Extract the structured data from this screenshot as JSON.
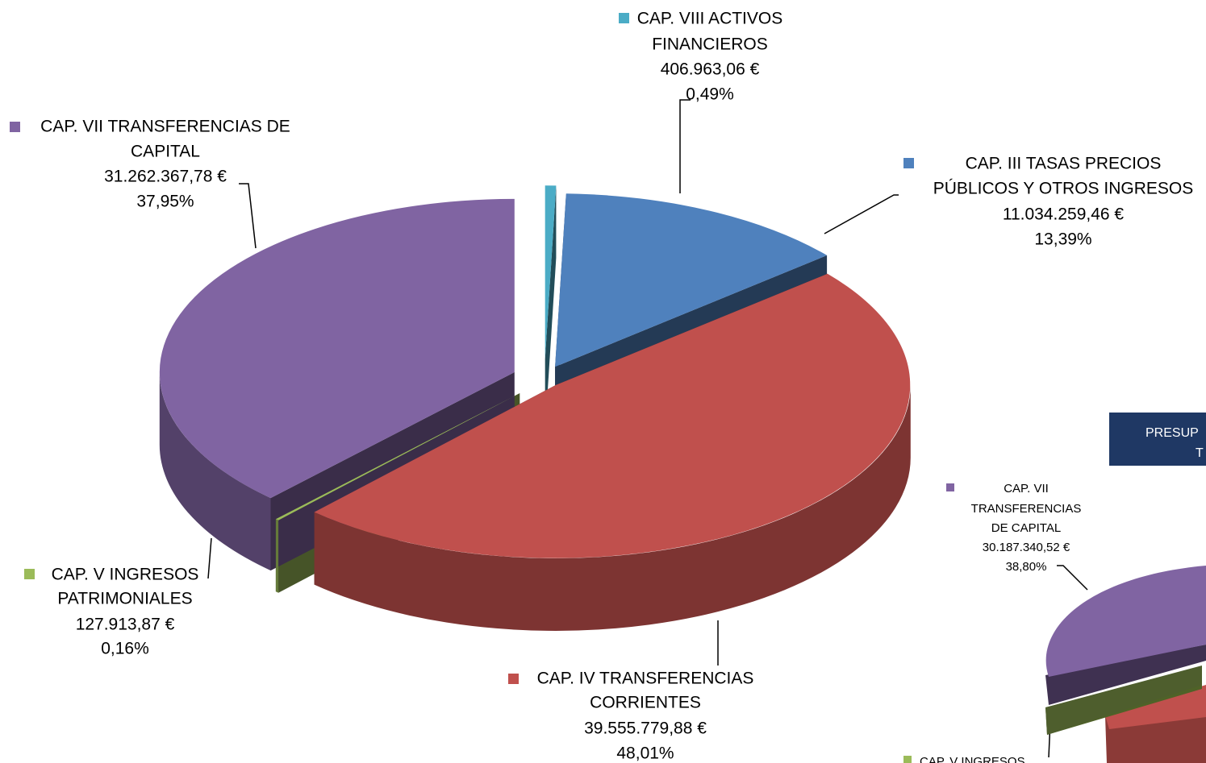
{
  "chart_data": [
    {
      "type": "pie",
      "categories": [
        [
          "CAP. VIII ACTIVOS",
          "FINANCIEROS"
        ],
        [
          "CAP. III TASAS PRECIOS",
          "PÚBLICOS Y OTROS INGRESOS"
        ],
        [
          "CAP. IV TRANSFERENCIAS",
          "CORRIENTES"
        ],
        [
          "CAP. V INGRESOS",
          "PATRIMONIALES"
        ],
        [
          "CAP. VII TRANSFERENCIAS DE",
          "CAPITAL"
        ]
      ],
      "values": [
        406963.06,
        11034259.46,
        39555779.88,
        127913.87,
        31262367.78
      ],
      "value_labels": [
        "406.963,06 €",
        "11.034.259,46 €",
        "39.555.779,88 €",
        "127.913,87 €",
        "31.262.367,78 €"
      ],
      "percents": [
        0.49,
        13.39,
        48.01,
        0.16,
        37.95
      ],
      "percent_labels": [
        "0,49%",
        "13,39%",
        "48,01%",
        "0,16%",
        "37,95%"
      ],
      "colors": [
        "#4bacc6",
        "#4f81bd",
        "#c0504d",
        "#9bbb59",
        "#8064a2"
      ]
    },
    {
      "type": "pie",
      "title_lines": [
        "PRESUP",
        "T"
      ],
      "categories": [
        [
          "CAP. VII",
          "TRANSFERENCIAS",
          "DE CAPITAL"
        ],
        [
          "CAP. V INGRESOS"
        ]
      ],
      "values": [
        30187340.52,
        null
      ],
      "value_labels": [
        "30.187.340,52 €",
        null
      ],
      "percents": [
        38.8,
        null
      ],
      "percent_labels": [
        "38,80%",
        null
      ],
      "colors": [
        "#8064a2",
        "#9bbb59"
      ]
    }
  ]
}
